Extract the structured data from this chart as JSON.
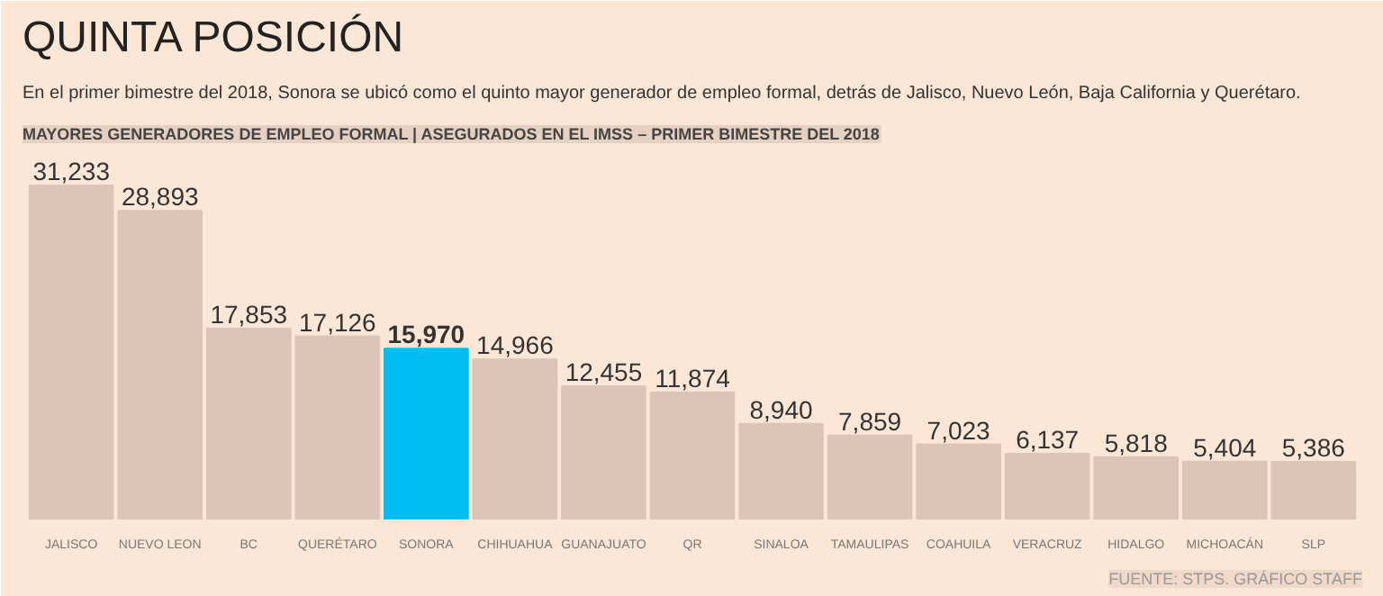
{
  "chart_data": {
    "type": "bar",
    "title": "QUINTA POSICIÓN",
    "subtitle": "En el primer bimestre del 2018, Sonora se ubicó como el quinto mayor generador de empleo formal, detrás de Jalisco, Nuevo León, Baja California y Querétaro.",
    "annotations": [
      "MAYORES GENERADORES DE EMPLEO FORMAL | ASEGURADOS EN EL IMSS – PRIMER BIMESTRE DEL 2018",
      "FUENTE: STPS. GRÁFICO STAFF"
    ],
    "categories": [
      "JALISCO",
      "NUEVO LEON",
      "BC",
      "QUERÉTARO",
      "SONORA",
      "CHIHUAHUA",
      "GUANAJUATO",
      "QR",
      "SINALOA",
      "TAMAULIPAS",
      "COAHUILA",
      "VERACRUZ",
      "HIDALGO",
      "MICHOACÁN",
      "SLP"
    ],
    "values": [
      31233,
      28893,
      17853,
      17126,
      15970,
      14966,
      12455,
      11874,
      8940,
      7859,
      7023,
      6137,
      5818,
      5404,
      5386
    ],
    "colors": [
      "#dcc5b6",
      "#dcc5b6",
      "#dcc5b6",
      "#dcc5b6",
      "#00bdf2",
      "#dcc5b6",
      "#dcc5b6",
      "#dcc5b6",
      "#dcc5b6",
      "#dcc5b6",
      "#dcc5b6",
      "#dcc5b6",
      "#dcc5b6",
      "#dcc5b6",
      "#dcc5b6"
    ],
    "value_labels": [
      "31,233",
      "28,893",
      "17,853",
      "17,126",
      "15,970",
      "14,966",
      "12,455",
      "11,874",
      "8,940",
      "7,859",
      "7,023",
      "6,137",
      "5,818",
      "5,404",
      "5,386"
    ],
    "grid": false
  }
}
